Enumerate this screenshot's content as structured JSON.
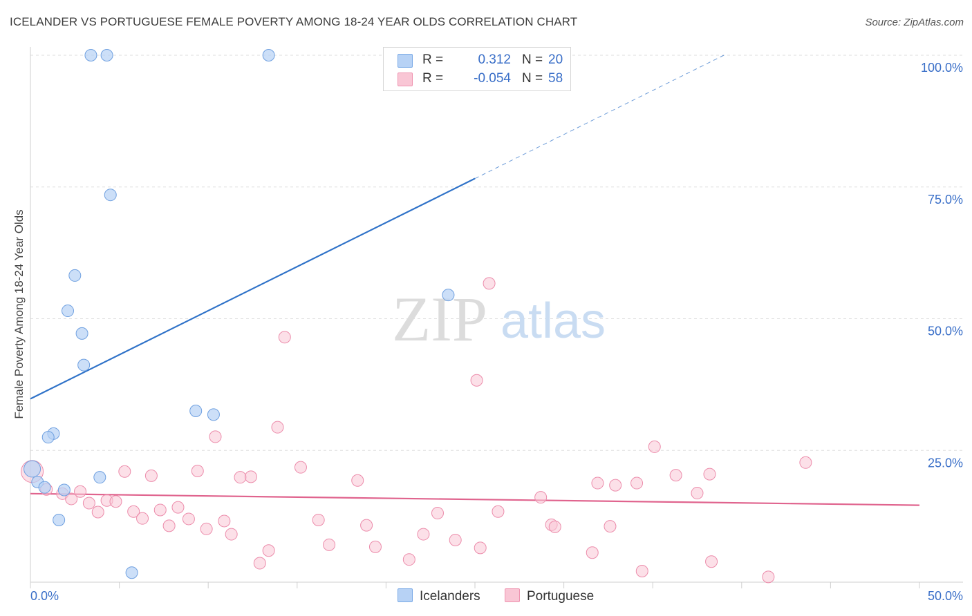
{
  "title": "ICELANDER VS PORTUGUESE FEMALE POVERTY AMONG 18-24 YEAR OLDS CORRELATION CHART",
  "source": "Source: ZipAtlas.com",
  "watermark": {
    "zip": "ZIP",
    "atlas": "atlas"
  },
  "legend": {
    "r_label": "R =",
    "n_label": "N =",
    "rows": [
      {
        "r": "0.312",
        "n": "20",
        "fill": "#b7d2f5",
        "stroke": "#7aaae6"
      },
      {
        "r": "-0.054",
        "n": "58",
        "fill": "#f9c6d5",
        "stroke": "#ef93b0"
      }
    ]
  },
  "bottom_legend": {
    "icelanders": "Icelanders",
    "portuguese": "Portuguese"
  },
  "chart_data": {
    "type": "scatter",
    "title": "ICELANDER VS PORTUGUESE FEMALE POVERTY AMONG 18-24 YEAR OLDS CORRELATION CHART",
    "xlabel": "",
    "ylabel": "Female Poverty Among 18-24 Year Olds",
    "xlim": [
      0,
      50
    ],
    "ylim": [
      0,
      100
    ],
    "x_tick_labels": {
      "left": "0.0%",
      "right": "50.0%"
    },
    "y_ticks": [
      {
        "value": 100,
        "label": "100.0%"
      },
      {
        "value": 75,
        "label": "75.0%"
      },
      {
        "value": 50,
        "label": "50.0%"
      },
      {
        "value": 25,
        "label": "25.0%"
      }
    ],
    "grid": true,
    "colors": {
      "icelanders_fill": "#b7d2f5",
      "icelanders_stroke": "#6fa0e0",
      "icelanders_line": "#2f72c8",
      "portuguese_fill": "#f9c6d5",
      "portuguese_stroke": "#ec8cab",
      "portuguese_line": "#e0648e"
    },
    "series": [
      {
        "name": "Icelanders",
        "points": [
          [
            3.4,
            100
          ],
          [
            4.3,
            100
          ],
          [
            13.4,
            100
          ],
          [
            4.5,
            73.5
          ],
          [
            2.5,
            58.2
          ],
          [
            2.1,
            51.5
          ],
          [
            2.9,
            47.2
          ],
          [
            3.0,
            41.2
          ],
          [
            23.5,
            54.5
          ],
          [
            9.3,
            32.5
          ],
          [
            10.3,
            31.8
          ],
          [
            1.3,
            28.2
          ],
          [
            1.0,
            27.5
          ],
          [
            3.9,
            19.9
          ],
          [
            0.4,
            19.0
          ],
          [
            0.8,
            18.0
          ],
          [
            1.9,
            17.5
          ],
          [
            1.6,
            11.8
          ],
          [
            5.7,
            1.8
          ],
          [
            0.1,
            21.5
          ]
        ],
        "trend": {
          "x0": 0,
          "y0": 34.8,
          "x1": 25,
          "y1": 76.6,
          "dash_to_x": 39,
          "dash_to_y": 100
        }
      },
      {
        "name": "Portuguese",
        "points": [
          [
            0.1,
            21.0
          ],
          [
            0.9,
            17.6
          ],
          [
            1.8,
            16.8
          ],
          [
            2.3,
            15.8
          ],
          [
            2.8,
            17.2
          ],
          [
            3.3,
            15.0
          ],
          [
            3.8,
            13.3
          ],
          [
            4.3,
            15.5
          ],
          [
            4.8,
            15.3
          ],
          [
            5.3,
            21.0
          ],
          [
            5.8,
            13.4
          ],
          [
            6.3,
            12.1
          ],
          [
            6.8,
            20.2
          ],
          [
            7.3,
            13.7
          ],
          [
            7.8,
            10.7
          ],
          [
            8.3,
            14.2
          ],
          [
            8.9,
            12.0
          ],
          [
            9.4,
            21.1
          ],
          [
            9.9,
            10.1
          ],
          [
            10.4,
            27.6
          ],
          [
            10.9,
            11.6
          ],
          [
            11.3,
            9.1
          ],
          [
            11.8,
            19.9
          ],
          [
            12.4,
            20.0
          ],
          [
            12.9,
            3.6
          ],
          [
            13.4,
            6.0
          ],
          [
            13.9,
            29.4
          ],
          [
            14.3,
            46.5
          ],
          [
            15.2,
            21.8
          ],
          [
            16.2,
            11.8
          ],
          [
            16.8,
            7.1
          ],
          [
            18.4,
            19.3
          ],
          [
            18.9,
            10.8
          ],
          [
            19.4,
            6.7
          ],
          [
            21.3,
            4.3
          ],
          [
            22.1,
            9.1
          ],
          [
            22.9,
            13.1
          ],
          [
            25.1,
            38.3
          ],
          [
            25.3,
            6.5
          ],
          [
            25.8,
            56.7
          ],
          [
            26.3,
            13.4
          ],
          [
            28.7,
            16.1
          ],
          [
            29.3,
            10.9
          ],
          [
            29.5,
            10.5
          ],
          [
            31.6,
            5.6
          ],
          [
            31.9,
            18.8
          ],
          [
            32.6,
            10.6
          ],
          [
            32.9,
            18.4
          ],
          [
            34.1,
            18.8
          ],
          [
            34.4,
            2.1
          ],
          [
            35.1,
            25.7
          ],
          [
            36.3,
            20.3
          ],
          [
            37.5,
            16.9
          ],
          [
            38.2,
            20.5
          ],
          [
            38.3,
            3.9
          ],
          [
            41.5,
            1.0
          ],
          [
            43.6,
            22.7
          ],
          [
            23.9,
            8.0
          ]
        ],
        "trend": {
          "x0": 0,
          "y0": 16.8,
          "x1": 50,
          "y1": 14.6
        }
      }
    ]
  }
}
